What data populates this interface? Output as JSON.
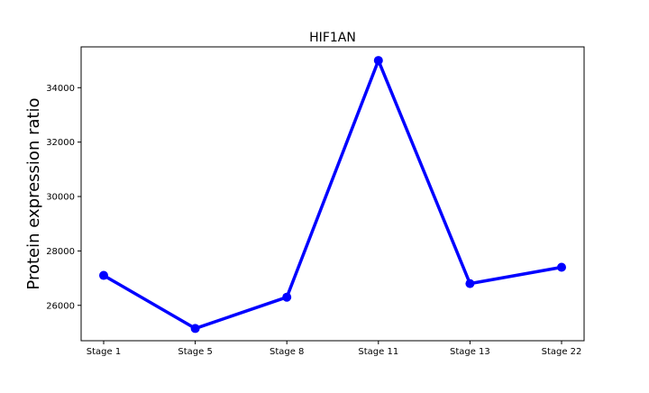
{
  "chart_data": {
    "type": "line",
    "title": "HIF1AN",
    "xlabel": "",
    "ylabel": "Protein expression ratio",
    "categories": [
      "Stage 1",
      "Stage 5",
      "Stage 8",
      "Stage 11",
      "Stage 13",
      "Stage 22"
    ],
    "series": [
      {
        "values": [
          27100,
          25150,
          26300,
          35000,
          26800,
          27400
        ],
        "color": "#0000ff",
        "marker": "circle"
      }
    ],
    "ylim": [
      24700,
      35500
    ],
    "yticks": [
      26000,
      28000,
      30000,
      32000,
      34000
    ],
    "ytick_labels": [
      "26000",
      "28000",
      "30000",
      "32000",
      "34000"
    ],
    "grid": false,
    "legend": "none"
  }
}
